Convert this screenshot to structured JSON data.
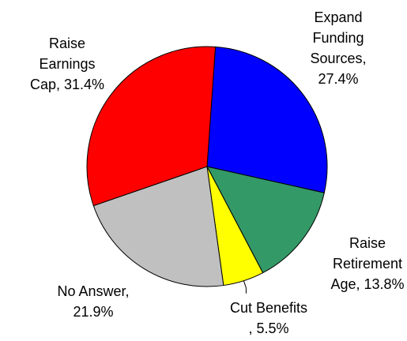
{
  "chart_data": {
    "type": "pie",
    "title": "",
    "slices": [
      {
        "lines": [
          "Expand",
          "Funding",
          "Sources,",
          "27.4%"
        ],
        "value": 27.4,
        "color": "#0000FF"
      },
      {
        "lines": [
          "Raise",
          "Retirement",
          "Age, 13.8%"
        ],
        "value": 13.8,
        "color": "#339966"
      },
      {
        "lines": [
          "Cut Benefits",
          ", 5.5%"
        ],
        "value": 5.5,
        "color": "#FFFF00"
      },
      {
        "lines": [
          "No Answer,",
          "21.9%"
        ],
        "value": 21.9,
        "color": "#C0C0C0"
      },
      {
        "lines": [
          "Raise",
          "Earnings",
          "Cap, 31.4%"
        ],
        "value": 31.4,
        "color": "#FF0000"
      }
    ]
  }
}
